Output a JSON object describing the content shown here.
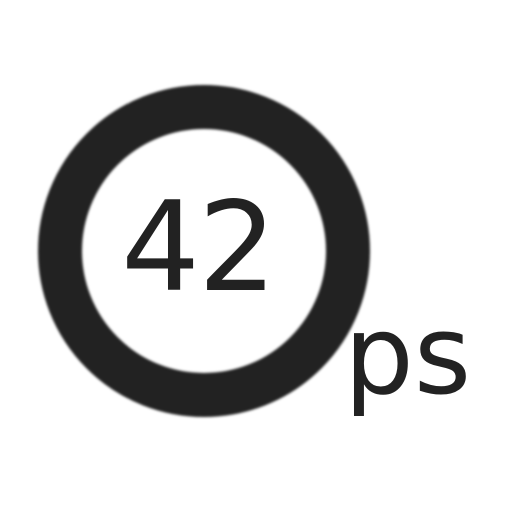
{
  "icon": {
    "name": "timer-ring-icon",
    "value": "42",
    "unit": "ps",
    "color": "#222222",
    "background": "#ffffff"
  }
}
